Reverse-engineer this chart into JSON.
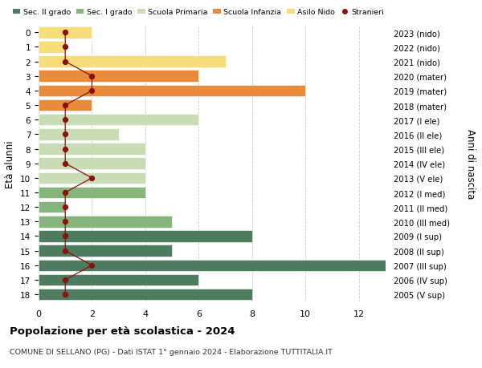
{
  "ages": [
    18,
    17,
    16,
    15,
    14,
    13,
    12,
    11,
    10,
    9,
    8,
    7,
    6,
    5,
    4,
    3,
    2,
    1,
    0
  ],
  "anni_nascita": [
    "2005 (V sup)",
    "2006 (IV sup)",
    "2007 (III sup)",
    "2008 (II sup)",
    "2009 (I sup)",
    "2010 (III med)",
    "2011 (II med)",
    "2012 (I med)",
    "2013 (V ele)",
    "2014 (IV ele)",
    "2015 (III ele)",
    "2016 (II ele)",
    "2017 (I ele)",
    "2018 (mater)",
    "2019 (mater)",
    "2020 (mater)",
    "2021 (nido)",
    "2022 (nido)",
    "2023 (nido)"
  ],
  "bar_values": [
    8,
    6,
    13,
    5,
    8,
    5,
    1,
    4,
    4,
    4,
    4,
    3,
    6,
    2,
    10,
    6,
    7,
    1,
    2
  ],
  "bar_colors": [
    "#4e7c5f",
    "#4e7c5f",
    "#4e7c5f",
    "#4e7c5f",
    "#4e7c5f",
    "#85b57a",
    "#85b57a",
    "#85b57a",
    "#c8ddb5",
    "#c8ddb5",
    "#c8ddb5",
    "#c8ddb5",
    "#c8ddb5",
    "#e88b3a",
    "#e88b3a",
    "#e88b3a",
    "#f7dc7a",
    "#f7dc7a",
    "#f7dc7a"
  ],
  "stranieri_values": [
    1,
    1,
    2,
    1,
    1,
    1,
    1,
    1,
    2,
    1,
    1,
    1,
    1,
    1,
    2,
    2,
    1,
    1,
    1
  ],
  "stranieri_color": "#8b1010",
  "legend_labels": [
    "Sec. II grado",
    "Sec. I grado",
    "Scuola Primaria",
    "Scuola Infanzia",
    "Asilo Nido",
    "Stranieri"
  ],
  "legend_colors": [
    "#4e7c5f",
    "#85b57a",
    "#c8ddb5",
    "#e88b3a",
    "#f7dc7a",
    "#8b1010"
  ],
  "title": "Popolazione per età scolastica - 2024",
  "subtitle": "COMUNE DI SELLANO (PG) - Dati ISTAT 1° gennaio 2024 - Elaborazione TUTTITALIA.IT",
  "ylabel_left": "Età alunni",
  "ylabel_right": "Anni di nascita",
  "xlim": [
    0,
    13
  ],
  "xticks": [
    0,
    2,
    4,
    6,
    8,
    10,
    12
  ],
  "background_color": "#ffffff",
  "grid_color": "#cccccc"
}
